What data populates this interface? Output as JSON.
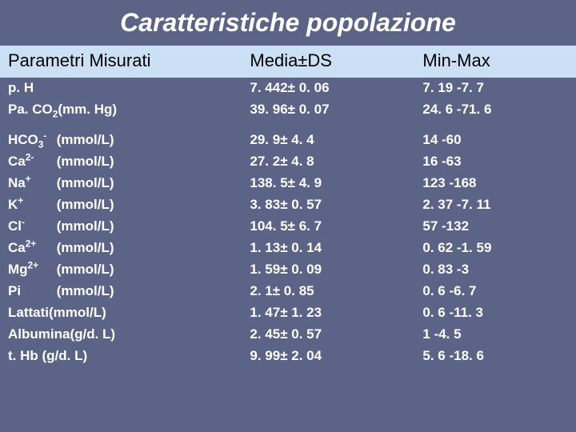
{
  "title": {
    "text": "Caratteristiche popolazione",
    "fontsize": 32,
    "color": "#ffffff"
  },
  "background_color": "#5b6487",
  "table": {
    "header_bg": "#cce0f5",
    "header_color": "#000000",
    "row_color": "#ffffff",
    "header_fontsize": 22,
    "row_fontsize": 17,
    "columns": [
      "Parametri Misurati",
      "Media±DS",
      "Min-Max"
    ],
    "rows": [
      {
        "param_html": "p. H",
        "mean": "7. 442± 0. 06",
        "range": "7. 19 -7. 7",
        "gap": false
      },
      {
        "param_html": "Pa. CO<sub>2</sub>(mm. Hg)",
        "mean": "39. 96± 0. 07",
        "range": "24. 6 -71. 6",
        "gap": false
      },
      {
        "param_html": "<span class=\"ion\">HCO<sub>3</sub><sup>-</sup></span> (mmol/L)",
        "mean": "29. 9± 4. 4",
        "range": "14 -60",
        "gap": true
      },
      {
        "param_html": "<span class=\"ion\">Ca<sup>2-</sup></span> (mmol/L)",
        "mean": "27. 2± 4. 8",
        "range": "16 -63",
        "gap": false
      },
      {
        "param_html": "<span class=\"ion\">Na<sup>+</sup></span> (mmol/L)",
        "mean": "138. 5± 4. 9",
        "range": "123 -168",
        "gap": false
      },
      {
        "param_html": "<span class=\"ion\">K<sup>+</sup></span> (mmol/L)",
        "mean": "3. 83± 0. 57",
        "range": "2. 37 -7. 11",
        "gap": false
      },
      {
        "param_html": "<span class=\"ion\">Cl<sup>-</sup></span> (mmol/L)",
        "mean": "104. 5± 6. 7",
        "range": "57 -132",
        "gap": false
      },
      {
        "param_html": "<span class=\"ion\">Ca<sup>2+</sup></span> (mmol/L)",
        "mean": "1. 13± 0. 14",
        "range": "0. 62 -1. 59",
        "gap": false
      },
      {
        "param_html": "<span class=\"ion\">Mg<sup>2+</sup></span> (mmol/L)",
        "mean": "1. 59± 0. 09",
        "range": "0. 83 -3",
        "gap": false
      },
      {
        "param_html": "<span class=\"ion\">Pi</span> (mmol/L)",
        "mean": "2. 1± 0. 85",
        "range": "0. 6 -6. 7",
        "gap": false
      },
      {
        "param_html": "Lattati(mmol/L)",
        "mean": "1. 47± 1. 23",
        "range": "0. 6 -11. 3",
        "gap": false
      },
      {
        "param_html": "Albumina(g/d. L)",
        "mean": "2. 45± 0. 57",
        "range": "1 -4. 5",
        "gap": false
      },
      {
        "param_html": "t. Hb (g/d. L)",
        "mean": "9. 99± 2. 04",
        "range": "5. 6 -18. 6",
        "gap": false
      }
    ]
  }
}
